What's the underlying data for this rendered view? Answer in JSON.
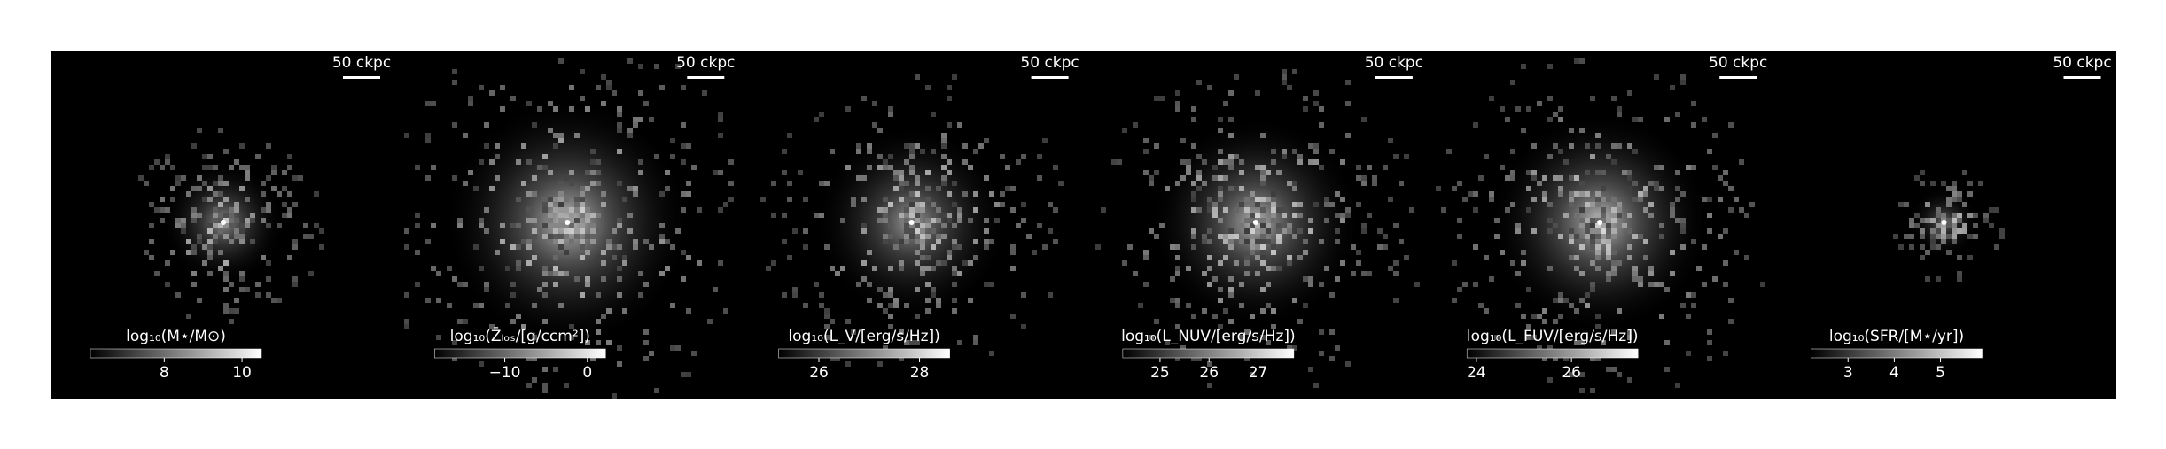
{
  "panels": [
    {
      "scale_label": "50 ckpc",
      "colorbar_label": "log₁₀(M⋆/M⊙)",
      "colorbar_lim": [
        6.1,
        10.5
      ],
      "colorbar_ticks": [
        8,
        10
      ]
    },
    {
      "scale_label": "50 ckpc",
      "colorbar_label": "log₁₀(Z̄ₗₒₛ/[g/ccm²])",
      "colorbar_lim": [
        -18.5,
        2.2
      ],
      "colorbar_ticks": [
        {
          "value": -10,
          "label": "−10"
        },
        0
      ]
    },
    {
      "scale_label": "50 ckpc",
      "colorbar_label": "log₁₀(L_V/[erg/s/Hz])",
      "colorbar_lim": [
        25.2,
        28.6
      ],
      "colorbar_ticks": [
        26,
        28
      ]
    },
    {
      "scale_label": "50 ckpc",
      "colorbar_label": "log₁₀(L_NUV/[erg/s/Hz])",
      "colorbar_lim": [
        24.24,
        27.73
      ],
      "colorbar_ticks": [
        25,
        26,
        27
      ]
    },
    {
      "scale_label": "50 ckpc",
      "colorbar_label": "log₁₀(L_FUV/[erg/s/Hz])",
      "colorbar_lim": [
        23.8,
        27.4
      ],
      "colorbar_ticks": [
        24,
        26
      ]
    },
    {
      "scale_label": "50 ckpc",
      "colorbar_label": "log₁₀(SFR/[M⋆/yr])",
      "colorbar_lim": [
        2.2,
        5.9
      ],
      "colorbar_ticks": [
        3,
        4,
        5
      ]
    }
  ]
}
